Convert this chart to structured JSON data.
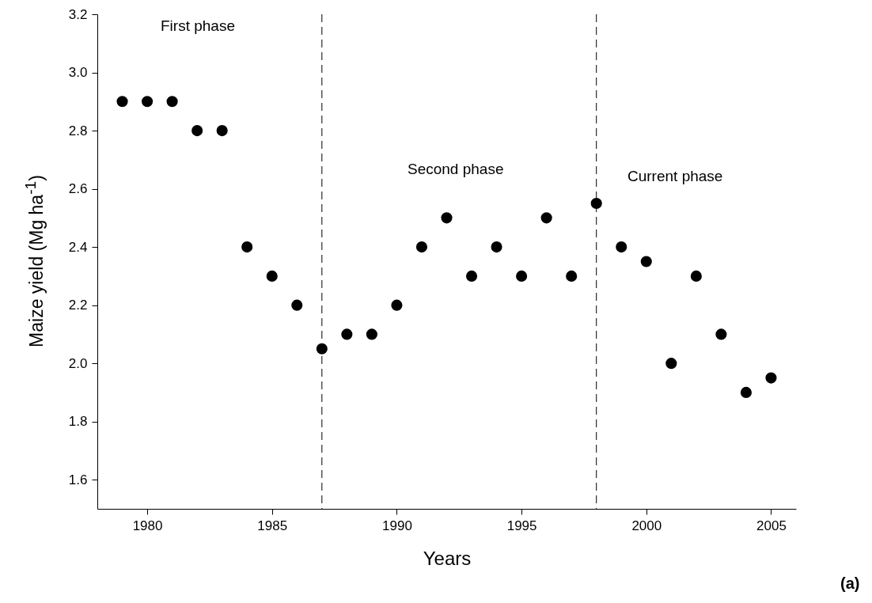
{
  "chart_data": {
    "type": "scatter",
    "xlabel": "Years",
    "ylabel": "Maize yield (Mg ha$^{-1}$)",
    "x": [
      1979,
      1980,
      1981,
      1982,
      1983,
      1984,
      1985,
      1986,
      1987,
      1988,
      1989,
      1990,
      1991,
      1992,
      1993,
      1994,
      1995,
      1996,
      1997,
      1998,
      1999,
      2000,
      2001,
      2002,
      2003,
      2004,
      2005
    ],
    "series": [
      {
        "color": "#000000",
        "values": [
          2.9,
          2.9,
          2.9,
          2.8,
          2.8,
          2.4,
          2.3,
          2.2,
          2.05,
          2.1,
          2.1,
          2.2,
          2.4,
          2.5,
          2.3,
          2.4,
          2.3,
          2.5,
          2.3,
          2.55,
          2.4,
          2.35,
          2.0,
          2.3,
          2.1,
          1.9,
          1.95
        ]
      }
    ],
    "xlim": [
      1978,
      2006
    ],
    "xticks": [
      1980,
      1985,
      1990,
      1995,
      2000,
      2005
    ],
    "ylim": [
      1.5,
      3.2
    ],
    "yticks": [
      {
        "value": 1.6,
        "label": "1.6"
      },
      {
        "value": 1.8,
        "label": "1.8"
      },
      {
        "value": 2.0,
        "label": "2.0"
      },
      {
        "value": 2.2,
        "label": "2.2"
      },
      {
        "value": 2.4,
        "label": "2.4"
      },
      {
        "value": 2.6,
        "label": "2.6"
      },
      {
        "value": 2.8,
        "label": "2.8"
      },
      {
        "value": 3.0,
        "label": "3.0"
      },
      {
        "value": 3.2,
        "label": "3.2"
      }
    ],
    "marker": "circle",
    "grid": false,
    "ref_lines": [
      {
        "axis": "x",
        "value": 1987,
        "color": "#000000",
        "line_style": "dashed"
      },
      {
        "axis": "x",
        "value": 1998,
        "color": "#000000",
        "line_style": "dashed"
      }
    ],
    "annotations": [
      "First phase",
      "Second phase",
      "Current phase",
      "(a)"
    ]
  }
}
